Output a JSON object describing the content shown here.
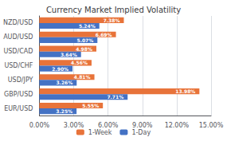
{
  "chart_data": {
    "type": "bar",
    "orientation": "horizontal",
    "title": "Currency Market Implied Volatility",
    "categories": [
      "EUR/USD",
      "GBP/USD",
      "USD/JPY",
      "USD/CHF",
      "USD/CAD",
      "AUD/USD",
      "NZD/USD"
    ],
    "series": [
      {
        "name": "1-Week",
        "color": "#E8733A",
        "values": [
          5.55,
          13.98,
          4.81,
          4.56,
          4.98,
          6.69,
          7.38
        ],
        "value_labels": [
          "5.55%",
          "13.98%",
          "4.81%",
          "4.56%",
          "4.98%",
          "6.69%",
          "7.38%"
        ]
      },
      {
        "name": "1-Day",
        "color": "#4472C4",
        "values": [
          3.25,
          7.71,
          3.26,
          2.9,
          3.64,
          5.07,
          5.24
        ],
        "value_labels": [
          "3.25%",
          "7.71%",
          "3.26%",
          "2.90%",
          "3.64%",
          "5.07%",
          "5.24%"
        ]
      }
    ],
    "xlim": [
      0,
      15
    ],
    "xticks": [
      {
        "value": 0,
        "label": "0.00%"
      },
      {
        "value": 3,
        "label": "3.00%"
      },
      {
        "value": 6,
        "label": "6.00%"
      },
      {
        "value": 9,
        "label": "9.00%"
      },
      {
        "value": 12,
        "label": "12.00%"
      },
      {
        "value": 15,
        "label": "15.00%"
      }
    ],
    "grid": true,
    "legend": "bottom",
    "data_labels": true
  }
}
